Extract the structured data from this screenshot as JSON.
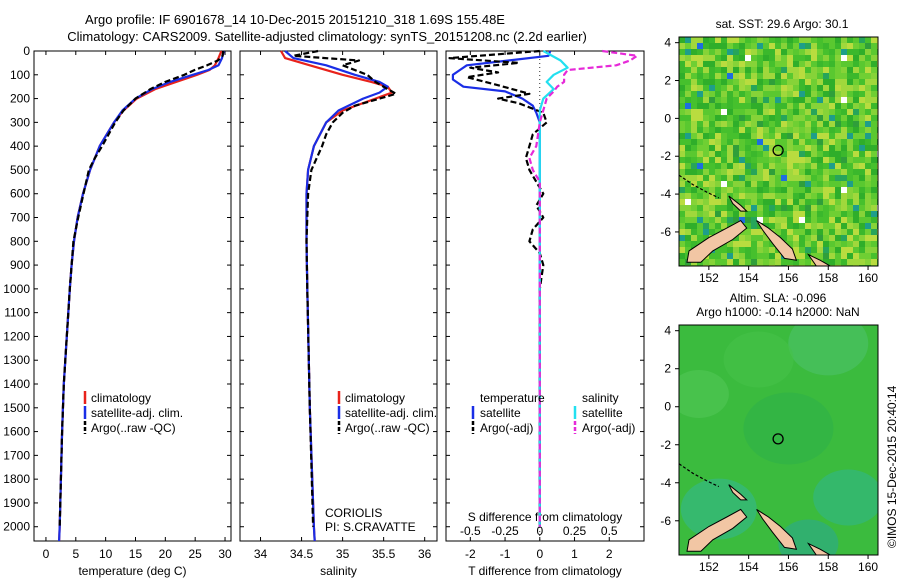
{
  "title": {
    "line1": "Argo profile: IF 6901678_14 10-Dec-2015 20151210_318 1.69S 155.48E",
    "line2": "Climatology: CARS2009. Satellite-adjusted climatology: synTS_20151208.nc (2.2d earlier)"
  },
  "colors": {
    "clim": "#e8221b",
    "sat": "#1a2ee6",
    "argo": "#000000",
    "sat_s": "#22e0f0",
    "argo_s": "#e62ad8",
    "land": "#f2c6a4"
  },
  "chart_data": [
    {
      "type": "line",
      "id": "temperature",
      "xlabel": "temperature (deg C)",
      "ylabel": "",
      "xlim": [
        -2,
        31
      ],
      "ylim": [
        2060,
        0
      ],
      "xticks": [
        0,
        5,
        10,
        15,
        20,
        25,
        30
      ],
      "yticks": [
        0,
        100,
        200,
        300,
        400,
        500,
        600,
        700,
        800,
        900,
        1000,
        1100,
        1200,
        1300,
        1400,
        1500,
        1600,
        1700,
        1800,
        1900,
        2000
      ],
      "legend": [
        "climatology",
        "satellite-adj. clim.",
        "Argo(..raw -QC)"
      ],
      "series": [
        {
          "name": "climatology",
          "color_key": "clim",
          "dash": false,
          "depth": [
            0,
            30,
            60,
            80,
            100,
            130,
            160,
            200,
            250,
            300,
            400,
            500,
            600,
            700,
            800,
            900,
            1000,
            1200,
            1400,
            1600,
            1800,
            2000,
            2060
          ],
          "values": [
            29.4,
            28.9,
            28.3,
            27.4,
            25.3,
            21.8,
            18.3,
            15.2,
            13.0,
            11.4,
            9.0,
            7.4,
            6.2,
            5.3,
            4.7,
            4.3,
            4.0,
            3.5,
            3.0,
            2.7,
            2.5,
            2.3,
            2.2
          ]
        },
        {
          "name": "satellite-adj. clim.",
          "color_key": "sat",
          "dash": false,
          "depth": [
            0,
            30,
            60,
            80,
            100,
            130,
            160,
            200,
            250,
            300,
            400,
            500,
            600,
            700,
            800,
            900,
            1000,
            1200,
            1400,
            1600,
            1800,
            2000,
            2060
          ],
          "values": [
            29.8,
            29.5,
            28.9,
            27.2,
            24.6,
            20.8,
            17.8,
            15.0,
            12.8,
            11.4,
            9.0,
            7.4,
            6.2,
            5.3,
            4.7,
            4.3,
            4.0,
            3.5,
            3.0,
            2.7,
            2.5,
            2.3,
            2.2
          ]
        },
        {
          "name": "Argo(..raw -QC)",
          "color_key": "argo",
          "dash": true,
          "depth": [
            0,
            20,
            40,
            60,
            80,
            100,
            130,
            160,
            200,
            250,
            300,
            400,
            450,
            500,
            600,
            700,
            800,
            900,
            1000,
            1200,
            1400,
            1600,
            1800,
            2000
          ],
          "values": [
            29.7,
            29.6,
            28.8,
            27.0,
            24.9,
            23.2,
            20.0,
            17.5,
            15.0,
            13.0,
            11.6,
            9.4,
            8.2,
            7.2,
            6.3,
            5.4,
            4.6,
            4.3,
            4.0,
            3.5,
            3.0,
            2.7,
            2.5,
            2.3
          ]
        }
      ]
    },
    {
      "type": "line",
      "id": "salinity",
      "xlabel": "salinity",
      "ylabel": "",
      "xlim": [
        33.75,
        36.15
      ],
      "ylim": [
        2060,
        0
      ],
      "xticks": [
        34,
        34.5,
        35,
        35.5,
        36
      ],
      "legend": [
        "climatology",
        "satellite-adj. clim.",
        "Argo(..raw -QC)"
      ],
      "annotation": [
        "CORIOLIS",
        "PI: S.CRAVATTE"
      ],
      "series": [
        {
          "name": "climatology",
          "color_key": "clim",
          "dash": false,
          "depth": [
            0,
            30,
            60,
            100,
            130,
            150,
            175,
            200,
            250,
            300,
            400,
            500,
            600,
            800,
            1000,
            1500,
            2000,
            2060
          ],
          "values": [
            34.25,
            34.3,
            34.6,
            35.0,
            35.35,
            35.55,
            35.6,
            35.4,
            35.0,
            34.8,
            34.65,
            34.58,
            34.56,
            34.56,
            34.57,
            34.6,
            34.65,
            34.66
          ]
        },
        {
          "name": "satellite-adj. clim.",
          "color_key": "sat",
          "dash": false,
          "depth": [
            0,
            30,
            60,
            100,
            130,
            150,
            175,
            200,
            250,
            300,
            400,
            500,
            600,
            800,
            1000,
            1500,
            2000,
            2060
          ],
          "values": [
            34.3,
            34.4,
            34.8,
            35.15,
            35.45,
            35.55,
            35.45,
            35.25,
            34.95,
            34.8,
            34.65,
            34.58,
            34.56,
            34.56,
            34.57,
            34.6,
            34.65,
            34.66
          ]
        },
        {
          "name": "Argo(..raw -QC)",
          "color_key": "argo",
          "dash": true,
          "depth": [
            0,
            20,
            40,
            60,
            100,
            130,
            160,
            180,
            200,
            230,
            260,
            300,
            350,
            400,
            500,
            600,
            800,
            1000,
            1500,
            2000
          ],
          "values": [
            34.7,
            34.4,
            35.2,
            35.0,
            35.3,
            35.4,
            35.55,
            35.65,
            35.45,
            35.15,
            35.0,
            34.88,
            34.8,
            34.75,
            34.62,
            34.58,
            34.56,
            34.57,
            34.6,
            34.64
          ]
        }
      ]
    },
    {
      "type": "line",
      "id": "difference",
      "xlabel": "T difference from climatology",
      "xlabel_top": "S difference from climatology",
      "xlim": [
        -2.7,
        3.0
      ],
      "ylim": [
        2060,
        0
      ],
      "xticks": [
        -2,
        -1,
        0,
        1,
        2
      ],
      "xticks_s_labels": [
        "-0.5",
        "-0.25",
        "0",
        "0.25",
        "0.5"
      ],
      "legend_groups": [
        {
          "title": "temperature",
          "items": [
            "satellite",
            "Argo(-adj)"
          ]
        },
        {
          "title": "salinity",
          "items": [
            "satellite",
            "Argo(-adj)"
          ]
        }
      ],
      "series": [
        {
          "name": "temperature satellite",
          "color_key": "sat",
          "dash": false,
          "depth": [
            0,
            20,
            40,
            60,
            80,
            100,
            120,
            150,
            170,
            200,
            230,
            260,
            300,
            400,
            600,
            800,
            1000,
            1500,
            2000
          ],
          "values": [
            0.3,
            0.25,
            -0.9,
            -2.1,
            -2.3,
            -2.5,
            -2.5,
            -2.2,
            -1.0,
            -0.5,
            -0.2,
            -0.1,
            0,
            0,
            0,
            0,
            0,
            0,
            0
          ]
        },
        {
          "name": "temperature Argo(-adj)",
          "color_key": "argo",
          "dash": true,
          "depth": [
            0,
            30,
            50,
            70,
            90,
            110,
            140,
            180,
            200,
            220,
            260,
            300,
            350,
            400,
            450,
            500,
            550,
            600,
            650,
            700,
            750,
            800,
            850,
            900,
            1000,
            1200,
            1500,
            2000
          ],
          "values": [
            0,
            -2.6,
            -0.6,
            -2.0,
            -1.2,
            -2.1,
            -1.3,
            -0.3,
            -1.2,
            -0.6,
            0.1,
            0.2,
            -0.2,
            -0.3,
            -0.4,
            -0.3,
            -0.1,
            0.1,
            -0.1,
            0.1,
            -0.2,
            -0.3,
            0,
            0.1,
            0,
            0,
            0,
            0
          ]
        },
        {
          "name": "salinity satellite",
          "color_key": "sat_s",
          "dash": false,
          "depth": [
            0,
            40,
            70,
            100,
            130,
            160,
            200,
            250,
            300,
            500,
            1000,
            2000
          ],
          "values": [
            0.1,
            0.6,
            0.8,
            0.4,
            0.2,
            0.4,
            0.1,
            0,
            0,
            0,
            0,
            0
          ]
        },
        {
          "name": "salinity Argo(-adj)",
          "color_key": "argo_s",
          "dash": true,
          "depth": [
            0,
            20,
            40,
            60,
            80,
            100,
            130,
            150,
            170,
            200,
            300,
            400,
            450,
            500,
            550,
            600,
            800,
            1000,
            1500,
            2000
          ],
          "values": [
            1.8,
            2.8,
            2.6,
            2.2,
            0.8,
            0.7,
            0.7,
            0.5,
            0.4,
            0.2,
            0,
            -0.1,
            -0.3,
            -0.2,
            0,
            0,
            0,
            0,
            0,
            0
          ]
        }
      ]
    },
    {
      "type": "heatmap",
      "id": "sst_map",
      "title": "sat. SST: 29.6 Argo: 30.1",
      "xlim": [
        150.5,
        160.5
      ],
      "ylim": [
        -7.8,
        4.3
      ],
      "xticks": [
        152,
        154,
        156,
        158,
        160
      ],
      "yticks": [
        -6,
        -4,
        -2,
        0,
        2,
        4
      ],
      "argo_location": [
        155.48,
        -1.69
      ]
    },
    {
      "type": "heatmap",
      "id": "sla_map",
      "title_line1": "Altim. SLA: -0.096",
      "title_line2": "Argo h1000: -0.14 h2000: NaN",
      "xlim": [
        150.5,
        160.5
      ],
      "ylim": [
        -7.8,
        4.3
      ],
      "xticks": [
        152,
        154,
        156,
        158,
        160
      ],
      "yticks": [
        -6,
        -4,
        -2,
        0,
        2,
        4
      ],
      "argo_location": [
        155.48,
        -1.69
      ]
    }
  ],
  "footer_vertical": "©IMOS 15-Dec-2015 20:40:14"
}
